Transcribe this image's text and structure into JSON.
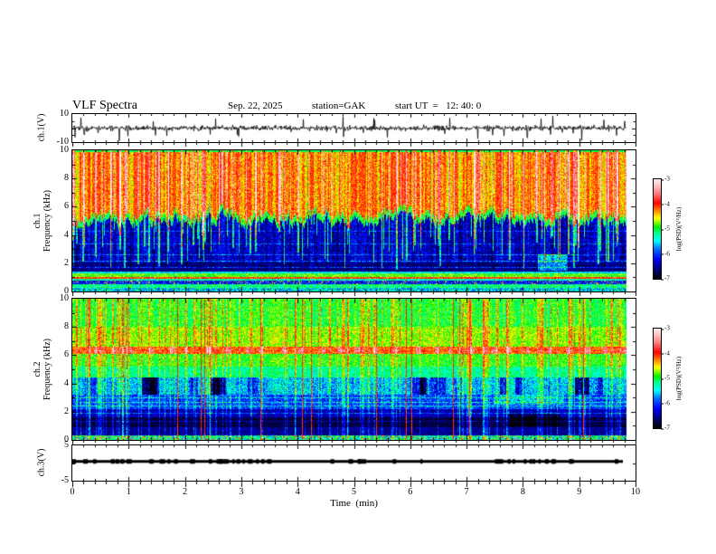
{
  "header": {
    "title": "VLF Spectra",
    "date": "Sep. 22, 2025",
    "station": "station=GAK",
    "start_ut": "start UT  =   12: 40: 0"
  },
  "labels": {
    "ch1_wave": "ch.1(V)",
    "spec1_line1": "ch.1",
    "spec1_line2": "Frequency  (kHz)",
    "spec2_line1": "ch.2",
    "spec2_line2": "Frequency  (kHz)",
    "ch3_wave": "ch.3(V)",
    "xaxis": "Time  (min)",
    "colorbar": "log(PSD)(V²/Hz)"
  },
  "ticks": {
    "ch1_y": [
      "10",
      "-10"
    ],
    "spec_y": [
      "10",
      "8",
      "6",
      "4",
      "2",
      "0"
    ],
    "ch3_y": [
      "5",
      "-5"
    ],
    "x": [
      "0",
      "1",
      "2",
      "3",
      "4",
      "5",
      "6",
      "7",
      "8",
      "9",
      "10"
    ],
    "colorbar": [
      "-3",
      "-4",
      "-5",
      "-6",
      "-7"
    ]
  },
  "chart_data": {
    "type": "heatmap",
    "title": "VLF Spectra, Sep. 22 2025, station GAK, start UT 12:40:0",
    "seed": 20250922,
    "x": {
      "label": "Time (min)",
      "range": [
        0,
        10
      ],
      "major_step": 1,
      "minor_step": 0.2,
      "data_end": 9.84
    },
    "colorbar": {
      "label": "log(PSD)(V²/Hz)",
      "range": [
        -7,
        -3
      ],
      "ticks": [
        -3,
        -4,
        -5,
        -6,
        -7
      ],
      "stops": [
        [
          0.0,
          "#000000"
        ],
        [
          0.1,
          "#00007f"
        ],
        [
          0.2,
          "#0000ff"
        ],
        [
          0.3,
          "#0070ff"
        ],
        [
          0.38,
          "#00ffff"
        ],
        [
          0.46,
          "#00ff90"
        ],
        [
          0.52,
          "#00ee00"
        ],
        [
          0.57,
          "#90ff00"
        ],
        [
          0.61,
          "#ffff00"
        ],
        [
          0.68,
          "#ff8c00"
        ],
        [
          0.76,
          "#ff0000"
        ],
        [
          0.86,
          "#ff8080"
        ],
        [
          0.94,
          "#ffc4c4"
        ],
        [
          1.0,
          "#ffe9e9"
        ]
      ]
    },
    "panels": [
      {
        "id": "ch1-wave",
        "type": "line",
        "ylabel": "ch.1(V)",
        "ylim": [
          -10,
          10
        ],
        "ytick_marks": [
          [
            5,
            2.5
          ],
          [
            0,
            4
          ],
          [
            -5,
            2.5
          ]
        ],
        "signal": {
          "kind": "noise",
          "mean": 0,
          "sigma": 1.3,
          "spike_p": 0.035,
          "spike_amp": [
            2.5,
            8.5
          ],
          "neg_bias": 0.6
        }
      },
      {
        "id": "ch1-spec",
        "type": "spectrogram",
        "ylabel": "ch.1 Frequency (kHz)",
        "ylim": [
          0,
          10
        ],
        "ytick_marks": [
          [
            1,
            3
          ],
          [
            2,
            5
          ],
          [
            3,
            3
          ],
          [
            4,
            5
          ],
          [
            5,
            3
          ],
          [
            6,
            5
          ],
          [
            7,
            3
          ],
          [
            8,
            5
          ],
          [
            9,
            3
          ]
        ],
        "boundary": {
          "mean": 5.45,
          "amp": 0.95,
          "fringe": 0.45,
          "fringe_val": -5.0
        },
        "upper": {
          "base": -4.25,
          "col": 0.42,
          "px": 0.3
        },
        "top_edge": {
          "rows": 2,
          "val": -5.05
        },
        "bands": [
          {
            "f": [
              2.05,
              10.5
            ],
            "base": -6.4,
            "px": 0.38,
            "col": 0.3
          },
          {
            "f": [
              1.42,
              2.05
            ],
            "base": -6.6,
            "px": 0.32,
            "col": 0.15
          },
          {
            "f": [
              1.28,
              1.42
            ],
            "base": -5.5,
            "px": 0.3
          },
          {
            "f": [
              1.05,
              1.28
            ],
            "base": -4.85,
            "px": 0.35
          },
          {
            "f": [
              0.92,
              1.05
            ],
            "base": -4.1,
            "px": 0.22
          },
          {
            "f": [
              0.8,
              0.92
            ],
            "base": -5.3,
            "px": 0.4
          },
          {
            "f": [
              0.5,
              0.8
            ],
            "base": -6.15,
            "px": 0.4,
            "speckle": {
              "p": 0.13,
              "boost": 1.75
            }
          },
          {
            "f": [
              0.24,
              0.5
            ],
            "base": -5.15,
            "px": 0.45
          },
          {
            "f": [
              0.0,
              0.24
            ],
            "base": -5.5,
            "px": 0.6
          }
        ],
        "hlines": [
          {
            "f": 1.7,
            "boost": 0.55
          },
          {
            "f": 2.2,
            "boost": 0.5
          },
          {
            "f": 2.6,
            "boost": 0.5
          },
          {
            "f": 3.4,
            "boost": 0.4
          },
          {
            "f": 4.3,
            "boost": 0.35
          }
        ],
        "streaks": {
          "kind": "sferics",
          "count": 155,
          "wide_p": 0.35,
          "red": {
            "p": 0.72,
            "boost": 0.8
          },
          "cyan": {
            "p": 0.85,
            "boost": 1.15,
            "depth": [
              1.5,
              4.8
            ]
          }
        },
        "patches": [
          {
            "x": [
              515,
              548
            ],
            "f": [
              1.5,
              2.6
            ],
            "boost": 0.85
          }
        ]
      },
      {
        "id": "ch2-spec",
        "type": "spectrogram",
        "ylabel": "ch.2 Frequency (kHz)",
        "ylim": [
          0,
          10
        ],
        "ytick_marks": [
          [
            1,
            3
          ],
          [
            2,
            5
          ],
          [
            3,
            3
          ],
          [
            4,
            5
          ],
          [
            5,
            3
          ],
          [
            6,
            5
          ],
          [
            7,
            3
          ],
          [
            8,
            5
          ],
          [
            9,
            3
          ]
        ],
        "bands": [
          {
            "f": [
              8.0,
              10.5
            ],
            "base": -4.95,
            "px": 0.3,
            "col": 0.22
          },
          {
            "f": [
              6.6,
              8.0
            ],
            "base": -4.72,
            "px": 0.3,
            "col": 0.18
          },
          {
            "f": [
              6.1,
              6.6
            ],
            "base": -4.2,
            "px": 0.28
          },
          {
            "f": [
              5.2,
              6.1
            ],
            "base": -4.9,
            "px": 0.28,
            "col": 0.15
          },
          {
            "f": [
              4.4,
              5.2
            ],
            "base": -5.2,
            "px": 0.33,
            "col": 0.15
          },
          {
            "f": [
              3.2,
              4.4
            ],
            "base": -5.6,
            "px": 0.45,
            "col": 0.3
          },
          {
            "f": [
              2.2,
              3.2
            ],
            "base": -6.0,
            "px": 0.42
          },
          {
            "f": [
              1.6,
              2.2
            ],
            "base": -6.45,
            "px": 0.3
          },
          {
            "f": [
              0.9,
              1.6
            ],
            "base": -6.8,
            "px": 0.22
          },
          {
            "f": [
              0.35,
              0.9
            ],
            "base": -6.55,
            "px": 0.3
          },
          {
            "f": [
              0.0,
              0.35
            ],
            "base": -5.3,
            "px": 0.6,
            "speckle": {
              "p": 0.1,
              "boost": 1.5
            }
          }
        ],
        "hlines": [
          {
            "f": 6.35,
            "boost": 0.3
          },
          {
            "f": 3.0,
            "boost": 0.5
          },
          {
            "f": 2.72,
            "boost": 0.5
          },
          {
            "f": 2.45,
            "boost": 0.45
          },
          {
            "f": 1.9,
            "boost": 0.5
          },
          {
            "f": 1.35,
            "boost": 0.35
          }
        ],
        "streaks": {
          "kind": "mixed",
          "green_count": 115,
          "green_boost": 0.5,
          "wide_p": 0.3,
          "red_count": 12,
          "red_value": -4.05,
          "blobs": {
            "period": 21,
            "jitter": 8,
            "boost": 0.6,
            "f": [
              6.1,
              6.6
            ],
            "width": [
              4,
              7
            ]
          },
          "dark_count": 18,
          "dark_boost": -0.55,
          "dark_f": [
            3.2,
            4.4
          ],
          "dark_width": [
            6,
            18
          ]
        },
        "patches": [
          {
            "x": [
              480,
              540
            ],
            "f": [
              0.95,
              1.85
            ],
            "boost": -0.35
          },
          {
            "x": [
              466,
              544
            ],
            "f": [
              2.5,
              3.2
            ],
            "boost": 0.45
          }
        ]
      },
      {
        "id": "ch3-wave",
        "type": "line",
        "ylabel": "ch.3(V)",
        "ylim": [
          -5,
          5
        ],
        "ytick_marks": [
          [
            0,
            3
          ]
        ],
        "signal": {
          "kind": "constant",
          "value": 0.45,
          "thickness_px": 3,
          "blob_count": 45
        }
      }
    ]
  }
}
